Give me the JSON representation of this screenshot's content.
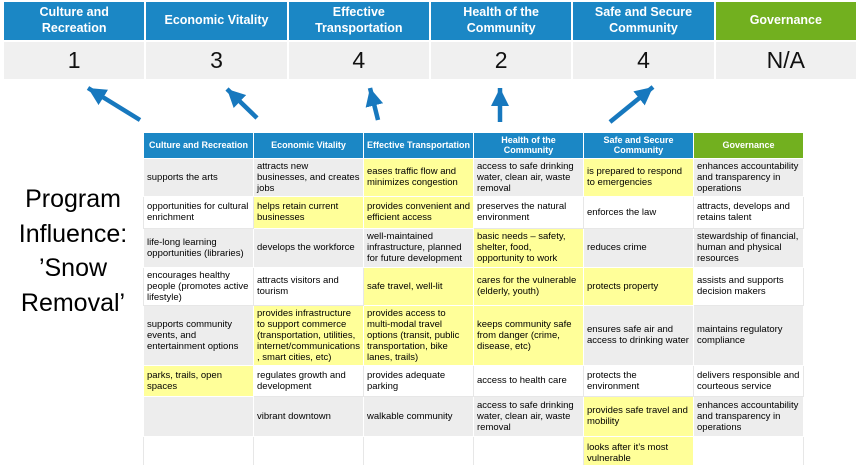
{
  "program_label": "Program Influence: ’Snow Removal’",
  "summary": {
    "columns": [
      {
        "label": "Culture and Recreation",
        "score": "1"
      },
      {
        "label": "Economic Vitality",
        "score": "3"
      },
      {
        "label": "Effective Transportation",
        "score": "4"
      },
      {
        "label": "Health of the Community",
        "score": "2"
      },
      {
        "label": "Safe and Secure Community",
        "score": "4"
      },
      {
        "label": "Governance",
        "score": "N/A"
      }
    ]
  },
  "matrix": {
    "headers": [
      "Culture and Recreation",
      "Economic Vitality",
      "Effective Transportation",
      "Health of the Community",
      "Safe and Secure Community",
      "Governance"
    ],
    "rows": [
      {
        "cells": [
          {
            "text": "supports the arts",
            "highlight": false
          },
          {
            "text": "attracts new businesses, and creates jobs",
            "highlight": false
          },
          {
            "text": "eases traffic flow and minimizes congestion",
            "highlight": true
          },
          {
            "text": "access to safe drinking water, clean air, waste removal",
            "highlight": false
          },
          {
            "text": "is prepared to respond to emergencies",
            "highlight": true
          },
          {
            "text": "enhances accountability and transparency in operations",
            "highlight": false
          }
        ]
      },
      {
        "cells": [
          {
            "text": "opportunities for cultural enrichment",
            "highlight": false
          },
          {
            "text": "helps retain current businesses",
            "highlight": true
          },
          {
            "text": "provides convenient and efficient access",
            "highlight": true
          },
          {
            "text": "preserves the natural environment",
            "highlight": false
          },
          {
            "text": "enforces the law",
            "highlight": false
          },
          {
            "text": "attracts, develops and retains talent",
            "highlight": false
          }
        ]
      },
      {
        "cells": [
          {
            "text": "life-long learning opportunities (libraries)",
            "highlight": false
          },
          {
            "text": "develops the workforce",
            "highlight": false
          },
          {
            "text": "well-maintained infrastructure, planned for future development",
            "highlight": false
          },
          {
            "text": "basic needs – safety, shelter, food, opportunity to work",
            "highlight": true
          },
          {
            "text": "reduces crime",
            "highlight": false
          },
          {
            "text": "stewardship of financial, human and physical resources",
            "highlight": false
          }
        ]
      },
      {
        "cells": [
          {
            "text": "encourages healthy people (promotes active lifestyle)",
            "highlight": false
          },
          {
            "text": "attracts visitors and tourism",
            "highlight": false
          },
          {
            "text": "safe travel, well-lit",
            "highlight": true
          },
          {
            "text": "cares for the vulnerable (elderly, youth)",
            "highlight": true
          },
          {
            "text": "protects property",
            "highlight": true
          },
          {
            "text": "assists and supports decision makers",
            "highlight": false
          }
        ]
      },
      {
        "cells": [
          {
            "text": "supports community events, and entertainment options",
            "highlight": false
          },
          {
            "text": "provides infrastructure to support commerce (transportation, utilities, internet/communications, smart cities, etc)",
            "highlight": true
          },
          {
            "text": "provides access to multi-modal travel options (transit, public transportation, bike lanes, trails)",
            "highlight": true
          },
          {
            "text": "keeps community safe from danger (crime, disease, etc)",
            "highlight": true
          },
          {
            "text": "ensures safe air and access to drinking water",
            "highlight": false
          },
          {
            "text": "maintains regulatory compliance",
            "highlight": false
          }
        ]
      },
      {
        "cells": [
          {
            "text": "parks, trails, open spaces",
            "highlight": true
          },
          {
            "text": "regulates growth and development",
            "highlight": false
          },
          {
            "text": "provides adequate parking",
            "highlight": false
          },
          {
            "text": "access to health care",
            "highlight": false
          },
          {
            "text": "protects the environment",
            "highlight": false
          },
          {
            "text": "delivers responsible and courteous service",
            "highlight": false
          }
        ]
      },
      {
        "cells": [
          {
            "text": "",
            "highlight": false
          },
          {
            "text": "vibrant downtown",
            "highlight": false
          },
          {
            "text": "walkable community",
            "highlight": false
          },
          {
            "text": "access to safe drinking water, clean air, waste removal",
            "highlight": false
          },
          {
            "text": "provides safe travel and mobility",
            "highlight": true
          },
          {
            "text": "enhances accountability and transparency in operations",
            "highlight": false
          }
        ]
      },
      {
        "cells": [
          {
            "text": "",
            "highlight": false
          },
          {
            "text": "",
            "highlight": false
          },
          {
            "text": "",
            "highlight": false
          },
          {
            "text": "",
            "highlight": false
          },
          {
            "text": "looks after it’s most vulnerable",
            "highlight": true
          },
          {
            "text": "",
            "highlight": false
          }
        ]
      }
    ]
  },
  "colors": {
    "header_blue": "#1B87C5",
    "header_green": "#72B01F",
    "highlight_yellow": "#FFFF99",
    "row_gray": "#EDEDED",
    "score_bg": "#F0F0F0",
    "arrow_blue": "#1778BE"
  }
}
